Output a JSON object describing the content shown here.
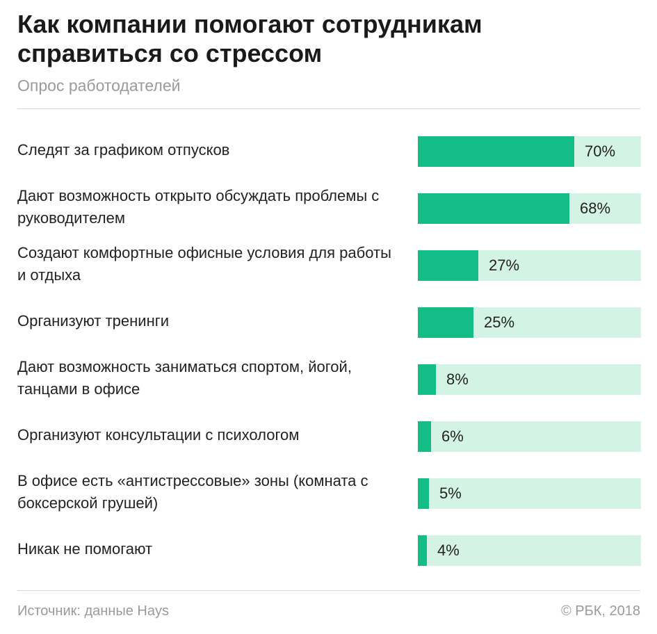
{
  "header": {
    "title": "Как компании помогают сотрудникам справиться со стрессом",
    "subtitle": "Опрос работодателей"
  },
  "footer": {
    "source": "Источник: данные Hays",
    "copyright": "© РБК, 2018"
  },
  "colors": {
    "bar_fill": "#14bd88",
    "bar_track": "#d3f3e5"
  },
  "chart_data": {
    "type": "bar",
    "orientation": "horizontal",
    "title": "Как компании помогают сотрудникам справиться со стрессом",
    "subtitle": "Опрос работодателей",
    "unit": "%",
    "xlim": [
      0,
      100
    ],
    "grid": false,
    "categories": [
      "Следят за графиком отпусков",
      "Дают возможность открыто обсуждать проблемы с руководителем",
      "Создают комфортные офисные условия для работы и отдыха",
      "Организуют тренинги",
      "Дают возможность заниматься спортом, йогой, танцами в офисе",
      "Организуют консультации с психологом",
      "В офисе есть «антистрессовые» зоны (комната с боксерской грушей)",
      "Никак не помогают"
    ],
    "values": [
      70,
      68,
      27,
      25,
      8,
      6,
      5,
      4
    ],
    "value_labels": [
      "70%",
      "68%",
      "27%",
      "25%",
      "8%",
      "6%",
      "5%",
      "4%"
    ]
  }
}
